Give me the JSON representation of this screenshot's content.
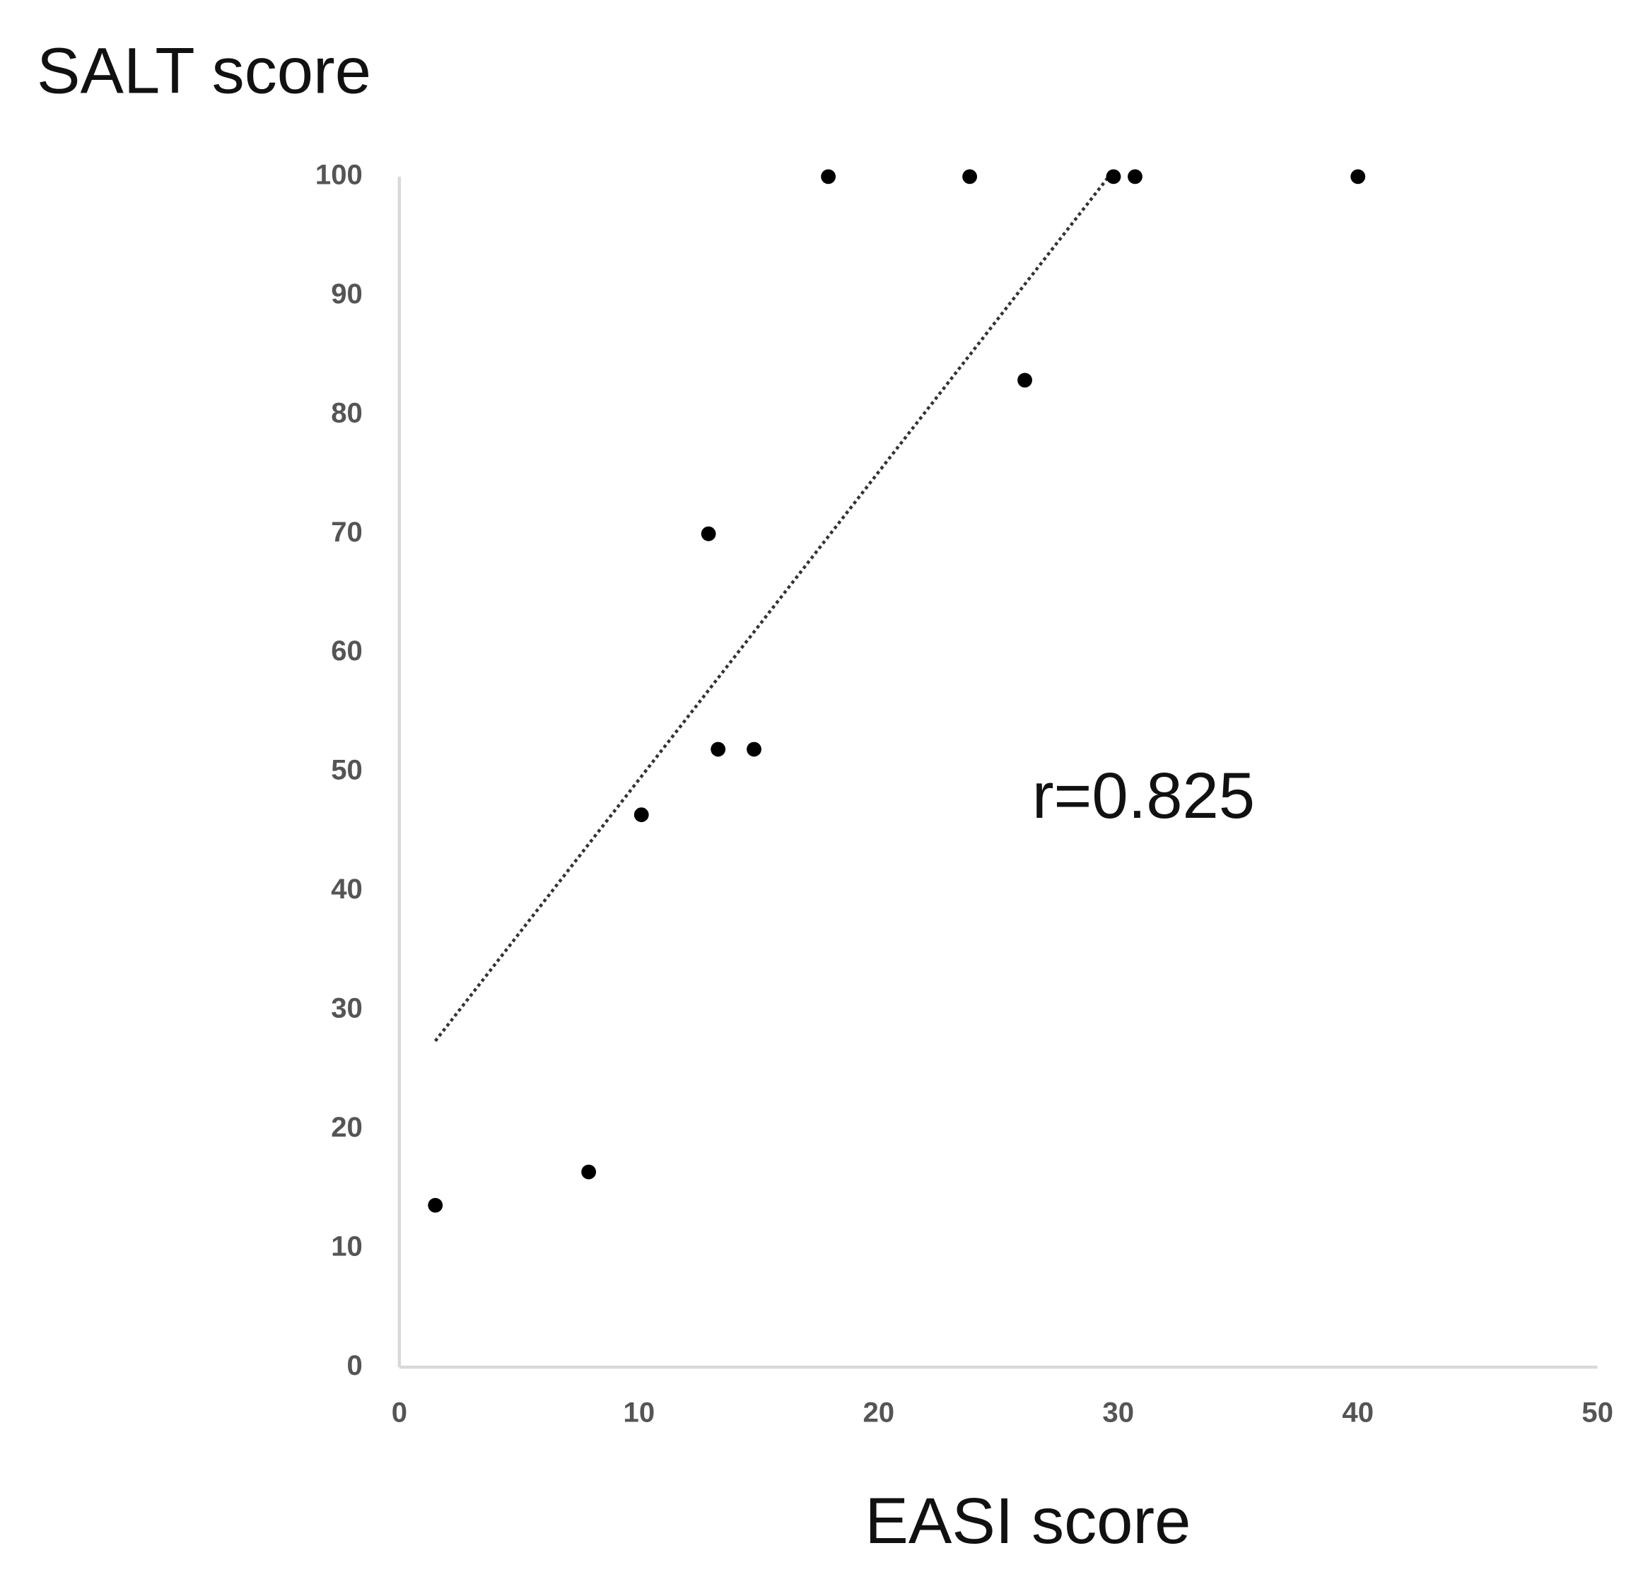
{
  "chart_data": {
    "type": "scatter",
    "y_label": "SALT score",
    "x_label": "EASI score",
    "annotation": "r=0.825",
    "x": [
      1.5,
      7.9,
      10.1,
      12.9,
      13.3,
      14.8,
      17.9,
      23.8,
      26.1,
      29.8,
      30.7,
      40
    ],
    "values": [
      13.6,
      16.4,
      46.4,
      70,
      51.9,
      51.9,
      100,
      100,
      82.9,
      100,
      100,
      100
    ],
    "color": "#000000",
    "trendline": {
      "x": [
        1.5,
        29.6
      ],
      "y": [
        27.4,
        100
      ],
      "color": "#333333"
    },
    "xlim": [
      0,
      50
    ],
    "xticks": [
      0,
      10,
      20,
      30,
      40,
      50
    ],
    "ylim": [
      0,
      100
    ],
    "yticks": [
      0,
      10,
      20,
      30,
      40,
      50,
      60,
      70,
      80,
      90,
      100
    ],
    "grid": false
  }
}
